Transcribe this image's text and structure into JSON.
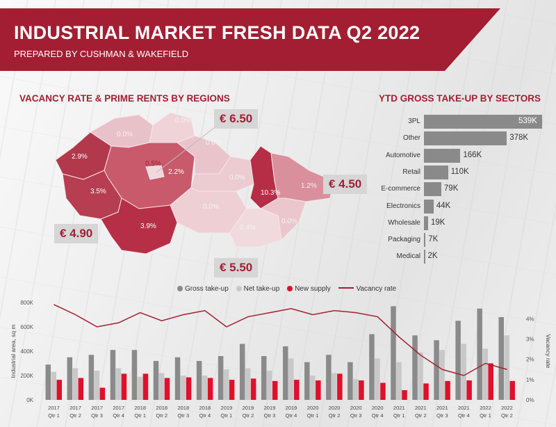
{
  "header": {
    "title": "INDUSTRIAL MARKET FRESH DATA Q2 2022",
    "subtitle": "PREPARED BY CUSHMAN & WAKEFIELD"
  },
  "colors": {
    "brand": "#a31e32",
    "gross": "#8a8a8a",
    "net": "#c8c8c8",
    "supply": "#e0102b",
    "vacancy": "#a31e32"
  },
  "map": {
    "title": "VACANCY RATE & PRIME RENTS BY REGIONS",
    "prices": [
      "€ 6.50",
      "€ 4.50",
      "€ 4.90",
      "€ 5.50"
    ],
    "regions": [
      {
        "id": "ustecky",
        "value": "0.0%"
      },
      {
        "id": "liberecky",
        "value": "0.0%"
      },
      {
        "id": "karlovarsky",
        "value": "2.9%"
      },
      {
        "id": "prague",
        "value": "0.5%"
      },
      {
        "id": "stredocesky",
        "value": "2.2%"
      },
      {
        "id": "kralovehradecky",
        "value": "0.0%"
      },
      {
        "id": "pardubicky",
        "value": "0.0%"
      },
      {
        "id": "plzensky",
        "value": "3.5%"
      },
      {
        "id": "olomoucky",
        "value": "10.3%"
      },
      {
        "id": "moravskoslezsky",
        "value": "1.2%"
      },
      {
        "id": "vysocina",
        "value": "0.0%"
      },
      {
        "id": "jihocesky",
        "value": "3.9%"
      },
      {
        "id": "jihomoravsky",
        "value": "0.4%"
      },
      {
        "id": "zlinsky",
        "value": "0.0%"
      }
    ]
  },
  "chart_data": [
    {
      "type": "bar",
      "title": "YTD GROSS TAKE-UP BY SECTORS",
      "categories": [
        "3PL",
        "Other",
        "Automotive",
        "Retail",
        "E-commerce",
        "Electronics",
        "Wholesale",
        "Packaging",
        "Medical"
      ],
      "values": [
        539,
        378,
        166,
        110,
        79,
        44,
        19,
        7,
        2
      ],
      "value_labels": [
        "539K",
        "378K",
        "166K",
        "110K",
        "79K",
        "44K",
        "19K",
        "7K",
        "2K"
      ],
      "orientation": "horizontal"
    },
    {
      "type": "bar",
      "legend": [
        "Gross take-up",
        "Net take-up",
        "New supply",
        "Vacancy rate"
      ],
      "legend_placement": "top",
      "categories": [
        [
          "2017",
          "Qtr 1"
        ],
        [
          "2017",
          "Qtr 2"
        ],
        [
          "2017",
          "Qtr 3"
        ],
        [
          "2017",
          "Qtr 4"
        ],
        [
          "2018",
          "Qtr 1"
        ],
        [
          "2018",
          "Qtr 2"
        ],
        [
          "2018",
          "Qtr 3"
        ],
        [
          "2018",
          "Qtr 4"
        ],
        [
          "2019",
          "Qtr 1"
        ],
        [
          "2019",
          "Qtr 2"
        ],
        [
          "2019",
          "Qtr 3"
        ],
        [
          "2019",
          "Qtr 4"
        ],
        [
          "2020",
          "Qtr 1"
        ],
        [
          "2020",
          "Qtr 2"
        ],
        [
          "2020",
          "Qtr 3"
        ],
        [
          "2020",
          "Qtr 4"
        ],
        [
          "2021",
          "Qtr 1"
        ],
        [
          "2021",
          "Qtr 2"
        ],
        [
          "2021",
          "Qtr 3"
        ],
        [
          "2021",
          "Qtr 4"
        ],
        [
          "2022",
          "Qtr 1"
        ],
        [
          "2022",
          "Qtr 2"
        ]
      ],
      "series": [
        {
          "name": "Gross take-up",
          "values": [
            290000,
            350000,
            370000,
            410000,
            410000,
            320000,
            350000,
            320000,
            360000,
            460000,
            360000,
            440000,
            310000,
            370000,
            310000,
            540000,
            770000,
            530000,
            490000,
            650000,
            750000,
            680000
          ]
        },
        {
          "name": "Net take-up",
          "values": [
            230000,
            260000,
            240000,
            260000,
            190000,
            220000,
            200000,
            200000,
            250000,
            260000,
            240000,
            340000,
            200000,
            220000,
            170000,
            340000,
            310000,
            390000,
            410000,
            460000,
            420000,
            530000
          ]
        },
        {
          "name": "New supply",
          "values": [
            165000,
            180000,
            100000,
            215000,
            215000,
            180000,
            185000,
            180000,
            165000,
            175000,
            155000,
            165000,
            160000,
            215000,
            160000,
            140000,
            80000,
            135000,
            155000,
            160000,
            300000,
            155000
          ]
        },
        {
          "name": "Vacancy rate",
          "axis": "right",
          "values": [
            4.7,
            4.2,
            3.6,
            3.8,
            4.3,
            3.9,
            4.2,
            4.4,
            3.6,
            4.1,
            4.3,
            4.5,
            4.2,
            4.4,
            4.3,
            4.1,
            3.1,
            2.2,
            1.5,
            1.2,
            1.8,
            1.5
          ]
        }
      ],
      "ylabel": "Industrial area, sq m",
      "y2label": "Vacancy rate",
      "yticks": [
        "0K",
        "200K",
        "400K",
        "600K",
        "800K"
      ],
      "y2ticks": [
        "0%",
        "1%",
        "2%",
        "3%",
        "4%"
      ],
      "ylim": [
        0,
        800000
      ],
      "y2lim": [
        0,
        4.8
      ]
    }
  ]
}
